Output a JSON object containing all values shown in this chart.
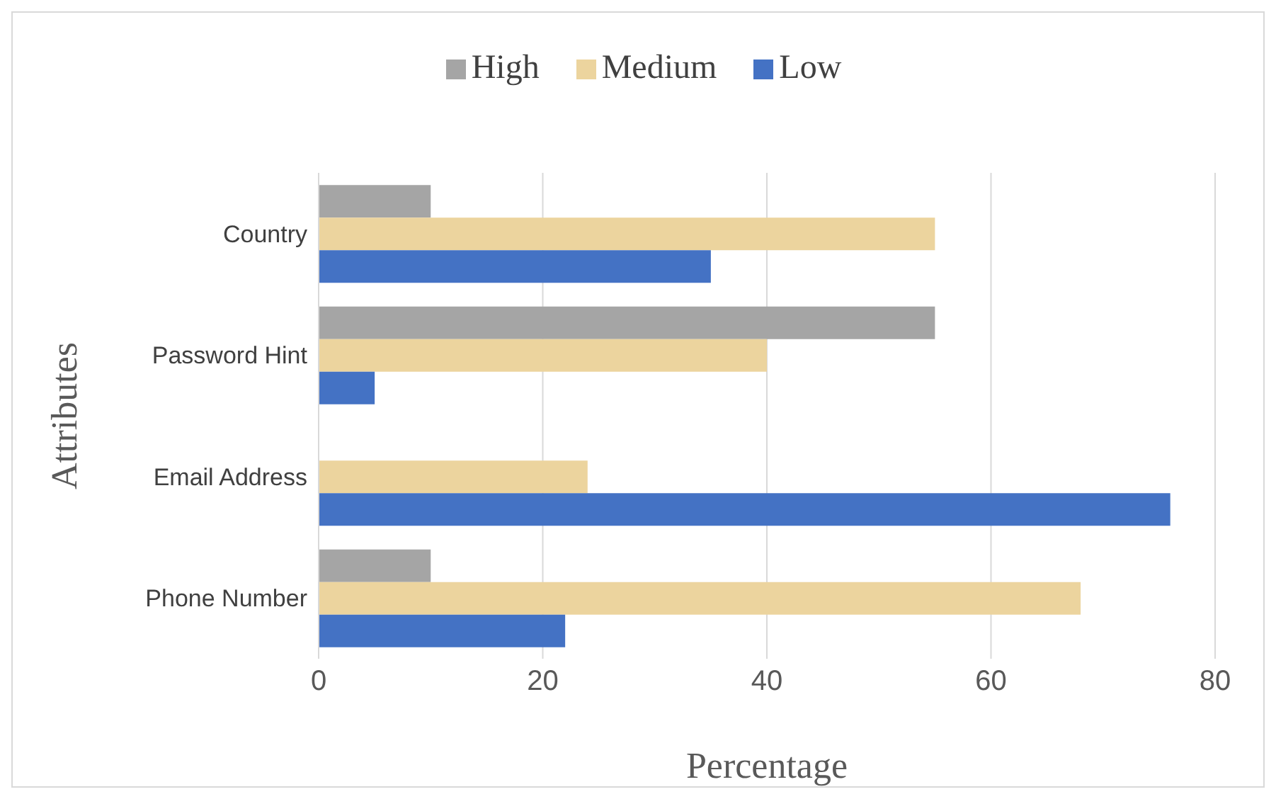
{
  "chart_data": {
    "type": "bar",
    "orientation": "horizontal",
    "xlabel": "Percentage",
    "ylabel": "Attributes",
    "categories": [
      "Country",
      "Password Hint",
      "Email Address",
      "Phone Number"
    ],
    "series": [
      {
        "name": "High",
        "color": "#a5a5a5",
        "values": [
          10,
          55,
          0,
          10
        ]
      },
      {
        "name": "Medium",
        "color": "#ecd49e",
        "values": [
          55,
          40,
          24,
          68
        ]
      },
      {
        "name": "Low",
        "color": "#4472c4",
        "values": [
          35,
          5,
          76,
          22
        ]
      }
    ],
    "xlim": [
      0,
      80
    ],
    "xticks": [
      0,
      20,
      40,
      60,
      80
    ],
    "grid": "x",
    "legend": "top"
  }
}
